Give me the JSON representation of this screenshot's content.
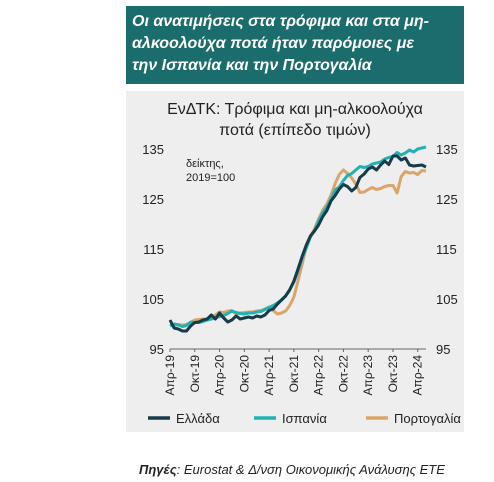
{
  "banner": {
    "line1": "Οι ανατιμήσεις στα τρόφιμα και στα μη-",
    "line2": "αλκοολούχα ποτά ήταν παρόμοιες με",
    "line3": "την Ισπανία και την Πορτογαλία"
  },
  "source": {
    "label": "Πηγές",
    "text": ": Eurostat & Δ/νση Οικονομικής Ανάλυσης ΕΤΕ"
  },
  "chart_data": {
    "type": "line",
    "title_line1": "ΕνΔΤΚ: Τρόφιμα και μη-αλκοολούχα",
    "title_line2": "ποτά (επίπεδο τιμών)",
    "annotation_line1": "δείκτης,",
    "annotation_line2": "2019=100",
    "ylim": [
      95,
      135
    ],
    "yticks": [
      95,
      105,
      115,
      125,
      135
    ],
    "ytick_labels": [
      "95",
      "105",
      "115",
      "125",
      "135"
    ],
    "xtick_labels": [
      "Απρ-19",
      "Οκτ-19",
      "Απρ-20",
      "Οκτ-20",
      "Απρ-21",
      "Οκτ-21",
      "Απρ-22",
      "Οκτ-22",
      "Απρ-23",
      "Οκτ-23",
      "Απρ-24"
    ],
    "x_start": "Απρ-19",
    "x_end": "Ιουν-24",
    "legend_position": "bottom",
    "series": [
      {
        "name": "Ελλάδα",
        "color": "#183b4a",
        "values": [
          100.8,
          99.2,
          99.0,
          98.6,
          98.6,
          99.6,
          100.3,
          100.4,
          100.8,
          101.0,
          101.8,
          101.0,
          102.2,
          101.2,
          100.4,
          100.8,
          101.6,
          101.0,
          101.2,
          101.4,
          101.2,
          101.6,
          101.4,
          101.8,
          102.7,
          103.0,
          104.0,
          104.8,
          105.6,
          106.8,
          108.6,
          111.0,
          113.5,
          115.8,
          117.6,
          118.6,
          119.8,
          121.5,
          122.7,
          124.6,
          125.7,
          127.0,
          127.9,
          127.5,
          126.6,
          127.3,
          129.3,
          130.0,
          131.0,
          131.4,
          130.8,
          131.8,
          132.6,
          131.9,
          133.6,
          133.6,
          132.8,
          133.2,
          131.8,
          131.6,
          131.7,
          131.8,
          131.4
        ]
      },
      {
        "name": "Ισπανία",
        "color": "#22b1b4",
        "values": [
          99.6,
          100.0,
          99.8,
          99.5,
          99.7,
          100.4,
          100.3,
          100.3,
          100.5,
          100.8,
          101.0,
          101.2,
          101.5,
          101.7,
          102.1,
          102.6,
          102.3,
          102.1,
          102.0,
          102.2,
          102.2,
          102.4,
          102.5,
          102.9,
          103.3,
          103.7,
          104.2,
          104.8,
          105.6,
          106.9,
          108.4,
          110.5,
          113.1,
          115.2,
          117.4,
          118.7,
          120.6,
          122.2,
          123.4,
          125.0,
          126.8,
          127.4,
          128.7,
          129.7,
          130.1,
          130.8,
          131.5,
          131.3,
          131.5,
          132.0,
          132.2,
          132.4,
          133.0,
          133.3,
          133.5,
          134.3,
          133.8,
          134.2,
          134.8,
          134.4,
          135.0,
          135.2,
          135.4
        ]
      },
      {
        "name": "Πορτογαλία",
        "color": "#dba468",
        "values": [
          99.9,
          99.8,
          99.9,
          99.8,
          99.9,
          100.3,
          100.8,
          100.9,
          101.0,
          100.9,
          101.3,
          101.8,
          102.4,
          102.3,
          102.6,
          102.7,
          102.0,
          102.2,
          102.3,
          102.4,
          102.4,
          102.6,
          102.7,
          103.0,
          103.4,
          102.7,
          102.0,
          102.2,
          102.6,
          103.7,
          105.4,
          108.6,
          111.9,
          115.5,
          117.5,
          119.0,
          121.0,
          122.8,
          124.0,
          125.8,
          128.1,
          129.9,
          130.8,
          130.1,
          129.2,
          128.0,
          126.3,
          126.4,
          126.9,
          127.3,
          126.9,
          127.1,
          127.5,
          127.7,
          127.7,
          126.2,
          129.5,
          130.5,
          130.2,
          130.3,
          129.9,
          130.7,
          130.6
        ]
      }
    ]
  }
}
